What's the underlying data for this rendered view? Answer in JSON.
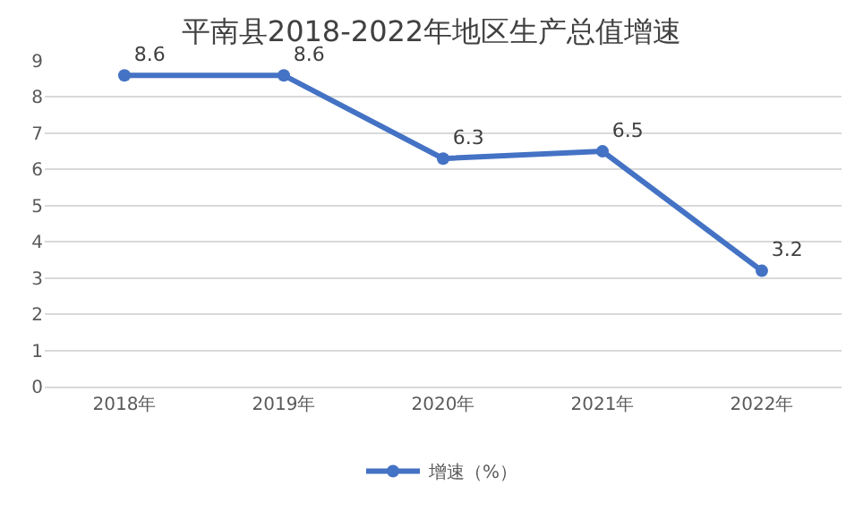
{
  "chart_data": {
    "type": "line",
    "title": "平南县2018-2022年地区生产总值增速",
    "categories": [
      "2018年",
      "2019年",
      "2020年",
      "2021年",
      "2022年"
    ],
    "series": [
      {
        "name": "增速（%）",
        "color": "#4472c4",
        "values": [
          8.6,
          8.6,
          6.3,
          6.5,
          3.2
        ]
      }
    ],
    "ylim": [
      0,
      9
    ],
    "yticks": [
      0,
      1,
      2,
      3,
      4,
      5,
      6,
      7,
      8,
      9
    ],
    "grid": "y",
    "legend": "bottom",
    "marker": "circle",
    "line_style": "solid",
    "data_labels": true
  }
}
